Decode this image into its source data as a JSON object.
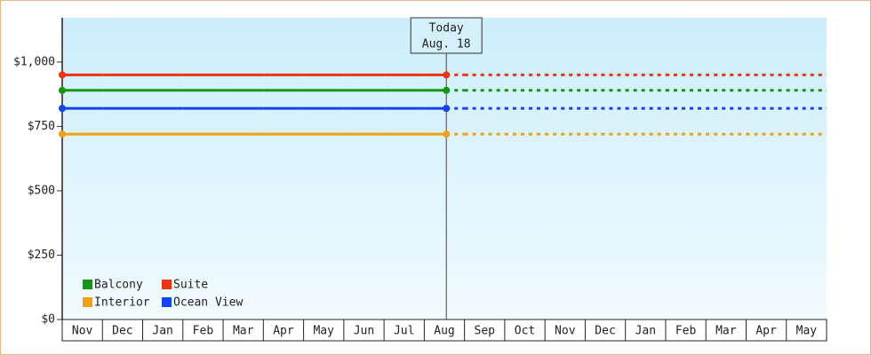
{
  "chart_data": {
    "type": "line",
    "categories": [
      "Nov",
      "Dec",
      "Jan",
      "Feb",
      "Mar",
      "Apr",
      "May",
      "Jun",
      "Jul",
      "Aug",
      "Sep",
      "Oct",
      "Nov",
      "Dec",
      "Jan",
      "Feb",
      "Mar",
      "Apr",
      "May"
    ],
    "series": [
      {
        "name": "Balcony",
        "color": "#119911",
        "values": [
          890,
          890,
          890,
          890,
          890,
          890,
          890,
          890,
          890,
          890,
          890,
          890,
          890,
          890,
          890,
          890,
          890,
          890,
          890
        ]
      },
      {
        "name": "Suite",
        "color": "#ee3311",
        "values": [
          950,
          950,
          950,
          950,
          950,
          950,
          950,
          950,
          950,
          950,
          950,
          950,
          950,
          950,
          950,
          950,
          950,
          950,
          950
        ]
      },
      {
        "name": "Interior",
        "color": "#f0a010",
        "values": [
          720,
          720,
          720,
          720,
          720,
          720,
          720,
          720,
          720,
          720,
          720,
          720,
          720,
          720,
          720,
          720,
          720,
          720,
          720
        ]
      },
      {
        "name": "Ocean View",
        "color": "#1144ee",
        "values": [
          820,
          820,
          820,
          820,
          820,
          820,
          820,
          820,
          820,
          820,
          820,
          820,
          820,
          820,
          820,
          820,
          820,
          820,
          820
        ]
      }
    ],
    "today": {
      "label": "Today",
      "date": "Aug. 18"
    },
    "ylim": [
      0,
      1172
    ],
    "yticks": [
      {
        "value": 0,
        "label": "$0"
      },
      {
        "value": 250,
        "label": "$250"
      },
      {
        "value": 500,
        "label": "$500"
      },
      {
        "value": 750,
        "label": "$750"
      },
      {
        "value": 1000,
        "label": "$1,000"
      }
    ],
    "grid": false,
    "legend": "lower left"
  }
}
